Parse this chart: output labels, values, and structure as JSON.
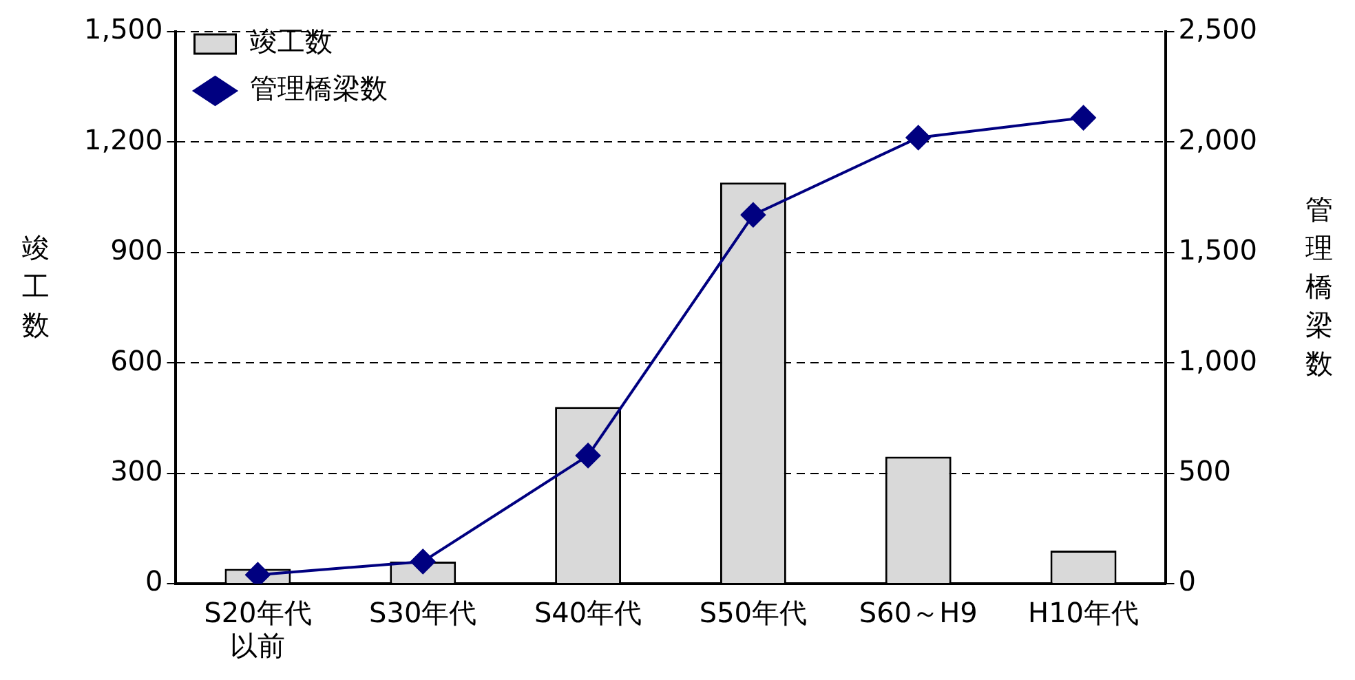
{
  "chart_data": {
    "type": "bar",
    "ylabel": "竣工数",
    "y2label": "管理橋梁数",
    "categories": [
      "S20年代以前",
      "S30年代",
      "S40年代",
      "S50年代",
      "S60～H9",
      "H10年代"
    ],
    "series": [
      {
        "name": "竣工数",
        "color": "#d9d9d9",
        "values": [
          40,
          60,
          480,
          1090,
          345,
          90
        ]
      },
      {
        "name": "管理橋梁数",
        "type": "line",
        "axis": "y2",
        "color": "#000080",
        "marker": "diamond",
        "values": [
          40,
          100,
          580,
          1670,
          2020,
          2110
        ]
      }
    ],
    "ylim": [
      0,
      1500
    ],
    "yticks": [
      0,
      300,
      600,
      900,
      {
        "value": 1200,
        "label": "1,200"
      },
      {
        "value": 1500,
        "label": "1,500"
      }
    ],
    "y2lim": [
      0,
      2500
    ],
    "y2ticks": [
      0,
      500,
      {
        "value": 1000,
        "label": "1,000"
      },
      {
        "value": 1500,
        "label": "1,500"
      },
      {
        "value": 2000,
        "label": "2,000"
      },
      {
        "value": 2500,
        "label": "2,500"
      }
    ],
    "grid": "y",
    "legend": "top left"
  }
}
